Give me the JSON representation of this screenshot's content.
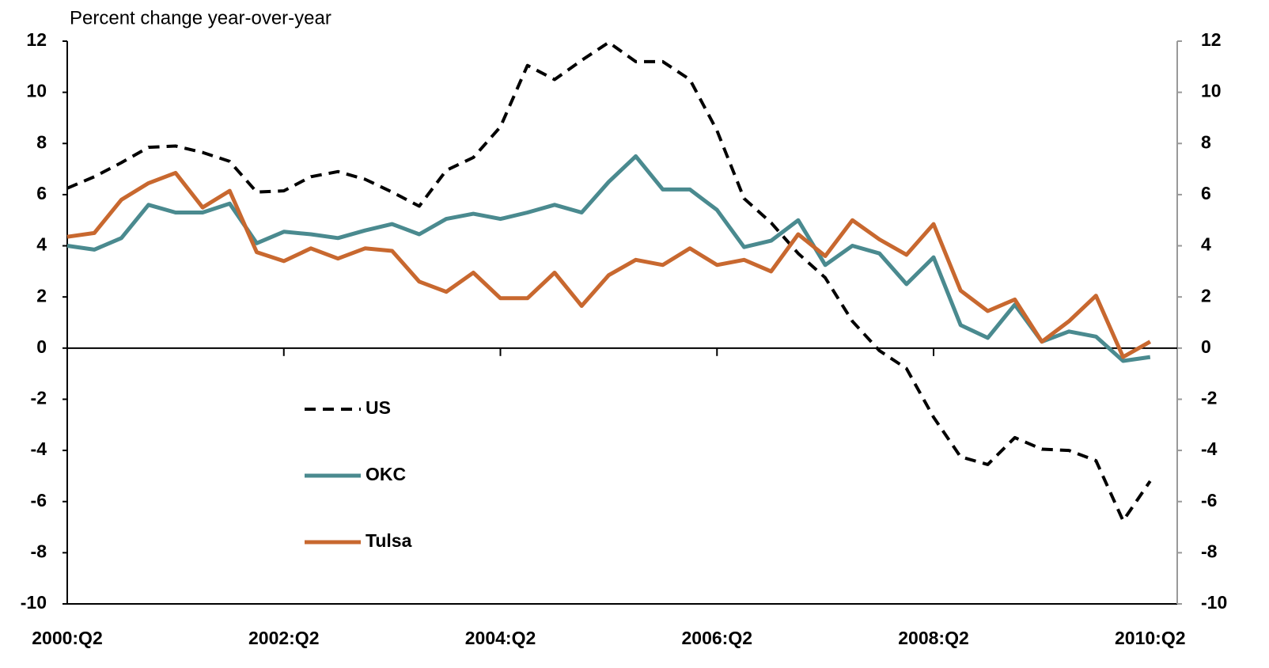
{
  "chart_data": {
    "type": "line",
    "y_axis_label": "Percent change year-over-year",
    "categories": [
      "2000:Q2",
      null,
      null,
      null,
      null,
      null,
      null,
      null,
      "2002:Q2",
      null,
      null,
      null,
      null,
      null,
      null,
      null,
      "2004:Q2",
      null,
      null,
      null,
      null,
      null,
      null,
      null,
      "2006:Q2",
      null,
      null,
      null,
      null,
      null,
      null,
      null,
      "2008:Q2",
      null,
      null,
      null,
      null,
      null,
      null,
      null,
      "2010:Q2",
      null
    ],
    "series": [
      {
        "name": "US",
        "color": "#000000",
        "dashed": true,
        "values": [
          6.25,
          6.7,
          7.25,
          7.85,
          7.9,
          7.65,
          7.3,
          6.1,
          6.15,
          6.7,
          6.9,
          6.6,
          6.1,
          5.55,
          6.95,
          7.45,
          8.65,
          11.05,
          10.5,
          11.25,
          11.95,
          11.2,
          11.2,
          10.5,
          8.5,
          5.85,
          4.9,
          3.7,
          2.75,
          1.05,
          -0.1,
          -0.8,
          -2.7,
          -4.25,
          -4.55,
          -3.5,
          -3.95,
          -4.0,
          -4.4,
          -6.75,
          -5.2,
          null
        ]
      },
      {
        "name": "OKC",
        "color": "#4a8a8f",
        "dashed": false,
        "values": [
          4.0,
          3.85,
          4.3,
          5.6,
          5.3,
          5.3,
          5.65,
          4.1,
          4.55,
          4.45,
          4.3,
          4.6,
          4.85,
          4.45,
          5.05,
          5.25,
          5.05,
          5.3,
          5.6,
          5.3,
          6.5,
          7.5,
          6.2,
          6.2,
          5.4,
          3.95,
          4.2,
          5.0,
          3.25,
          4.0,
          3.7,
          2.5,
          3.55,
          0.9,
          0.4,
          1.7,
          0.25,
          0.65,
          0.45,
          -0.5,
          -0.35,
          null
        ]
      },
      {
        "name": "Tulsa",
        "color": "#c8682f",
        "dashed": false,
        "values": [
          4.35,
          4.5,
          5.8,
          6.45,
          6.85,
          5.5,
          6.15,
          3.75,
          3.4,
          3.9,
          3.5,
          3.9,
          3.8,
          2.6,
          2.2,
          2.95,
          1.95,
          1.95,
          2.95,
          1.65,
          2.85,
          3.45,
          3.25,
          3.9,
          3.25,
          3.45,
          3.0,
          4.45,
          3.6,
          5.0,
          4.25,
          3.65,
          4.85,
          2.25,
          1.45,
          1.9,
          0.25,
          1.05,
          2.05,
          -0.35,
          0.25,
          null
        ]
      }
    ],
    "ylim": [
      -10,
      12
    ],
    "yticks": [
      -10,
      -8,
      -6,
      -4,
      -2,
      0,
      2,
      4,
      6,
      8,
      10,
      12
    ],
    "y2lim": [
      -10,
      12
    ],
    "y2ticks": [
      -10,
      -8,
      -6,
      -4,
      -2,
      0,
      2,
      4,
      6,
      8,
      10,
      12
    ],
    "grid": false
  }
}
